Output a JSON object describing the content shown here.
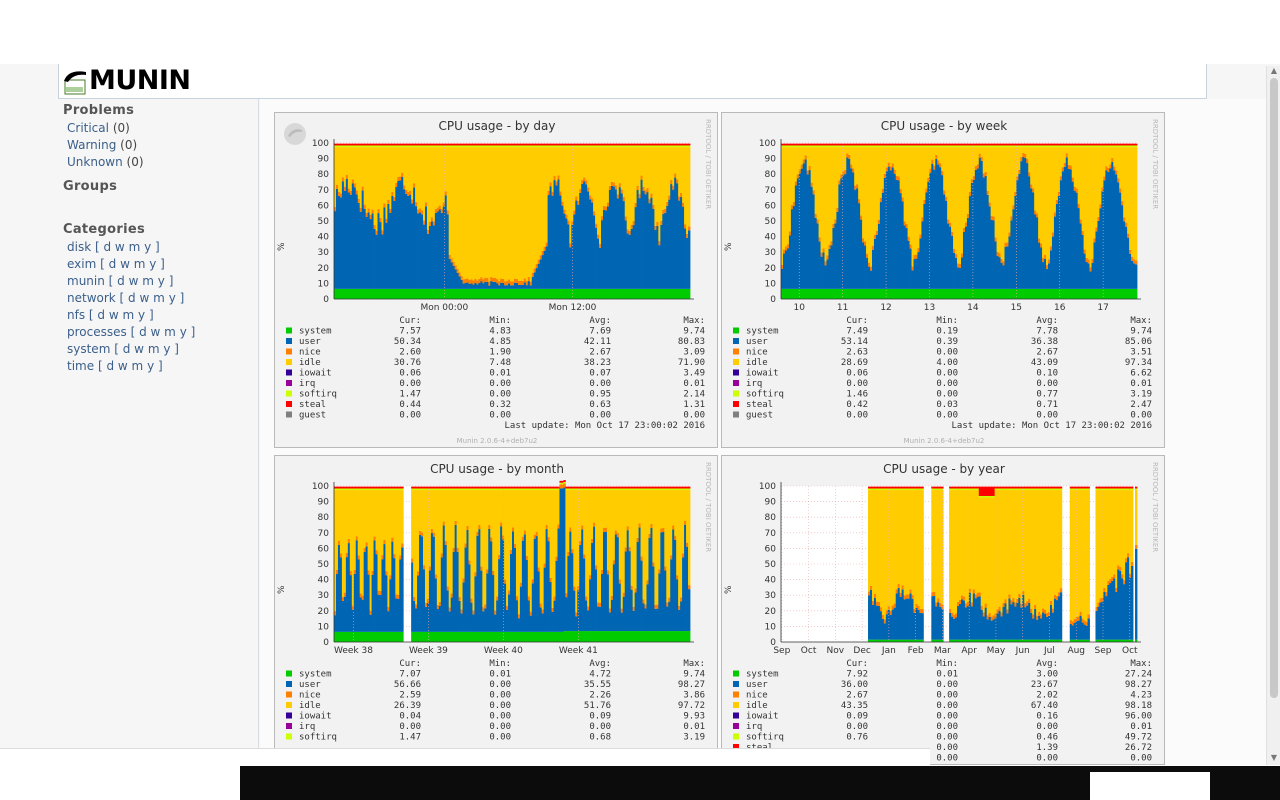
{
  "brand": {
    "logo_text": "MUNIN"
  },
  "sidebar": {
    "problems_heading": "Problems",
    "problems": [
      {
        "label": "Critical",
        "count": "(0)"
      },
      {
        "label": "Warning",
        "count": "(0)"
      },
      {
        "label": "Unknown",
        "count": "(0)"
      }
    ],
    "groups_heading": "Groups",
    "categories_heading": "Categories",
    "categories": [
      {
        "name": "disk"
      },
      {
        "name": "exim"
      },
      {
        "name": "munin"
      },
      {
        "name": "network"
      },
      {
        "name": "nfs"
      },
      {
        "name": "processes"
      },
      {
        "name": "system"
      },
      {
        "name": "time"
      }
    ],
    "period_links": [
      "d",
      "w",
      "m",
      "y"
    ]
  },
  "legend_header": {
    "cur": "Cur:",
    "min": "Min:",
    "avg": "Avg:",
    "max": "Max:"
  },
  "y_unit": "%",
  "vendor": "RRDTOOL / TOBI OETIKER",
  "series_colors": {
    "system": "#00cc00",
    "user": "#0066b3",
    "nice": "#ff8000",
    "idle": "#ffcc00",
    "iowait": "#330099",
    "irq": "#990099",
    "softirq": "#ccff00",
    "steal": "#ff0000",
    "guest": "#808080"
  },
  "chart_data": [
    {
      "type": "area",
      "title": "CPU usage - by day",
      "ylabel": "%",
      "ylim": [
        0,
        100
      ],
      "yticks": [
        0,
        10,
        20,
        30,
        40,
        50,
        60,
        70,
        80,
        90,
        100
      ],
      "xticks": [
        "Mon 00:00",
        "Mon 12:00"
      ],
      "grid": true,
      "legend": [
        {
          "name": "system",
          "cur": "7.57",
          "min": "4.83",
          "avg": "7.69",
          "max": "9.74"
        },
        {
          "name": "user",
          "cur": "50.34",
          "min": "4.85",
          "avg": "42.11",
          "max": "80.83"
        },
        {
          "name": "nice",
          "cur": "2.60",
          "min": "1.90",
          "avg": "2.67",
          "max": "3.09"
        },
        {
          "name": "idle",
          "cur": "30.76",
          "min": "7.48",
          "avg": "38.23",
          "max": "71.90"
        },
        {
          "name": "iowait",
          "cur": "0.06",
          "min": "0.01",
          "avg": "0.07",
          "max": "3.49"
        },
        {
          "name": "irq",
          "cur": "0.00",
          "min": "0.00",
          "avg": "0.00",
          "max": "0.01"
        },
        {
          "name": "softirq",
          "cur": "1.47",
          "min": "0.00",
          "avg": "0.95",
          "max": "2.14"
        },
        {
          "name": "steal",
          "cur": "0.44",
          "min": "0.32",
          "avg": "0.63",
          "max": "1.31"
        },
        {
          "name": "guest",
          "cur": "0.00",
          "min": "0.00",
          "avg": "0.00",
          "max": "0.00"
        }
      ],
      "last_update": "Last update:  Mon Oct 17 23:00:02 2016",
      "footer": "Munin 2.0.6-4+deb7u2"
    },
    {
      "type": "area",
      "title": "CPU usage - by week",
      "ylabel": "%",
      "ylim": [
        0,
        100
      ],
      "yticks": [
        0,
        10,
        20,
        30,
        40,
        50,
        60,
        70,
        80,
        90,
        100
      ],
      "xticks": [
        "10",
        "11",
        "12",
        "13",
        "14",
        "15",
        "16",
        "17"
      ],
      "grid": true,
      "legend": [
        {
          "name": "system",
          "cur": "7.49",
          "min": "0.19",
          "avg": "7.78",
          "max": "9.74"
        },
        {
          "name": "user",
          "cur": "53.14",
          "min": "0.39",
          "avg": "36.38",
          "max": "85.06"
        },
        {
          "name": "nice",
          "cur": "2.63",
          "min": "0.00",
          "avg": "2.67",
          "max": "3.51"
        },
        {
          "name": "idle",
          "cur": "28.69",
          "min": "4.00",
          "avg": "43.09",
          "max": "97.34"
        },
        {
          "name": "iowait",
          "cur": "0.06",
          "min": "0.00",
          "avg": "0.10",
          "max": "6.62"
        },
        {
          "name": "irq",
          "cur": "0.00",
          "min": "0.00",
          "avg": "0.00",
          "max": "0.01"
        },
        {
          "name": "softirq",
          "cur": "1.46",
          "min": "0.00",
          "avg": "0.77",
          "max": "3.19"
        },
        {
          "name": "steal",
          "cur": "0.42",
          "min": "0.03",
          "avg": "0.71",
          "max": "2.47"
        },
        {
          "name": "guest",
          "cur": "0.00",
          "min": "0.00",
          "avg": "0.00",
          "max": "0.00"
        }
      ],
      "last_update": "Last update:  Mon Oct 17 23:00:02 2016",
      "footer": "Munin 2.0.6-4+deb7u2"
    },
    {
      "type": "area",
      "title": "CPU usage - by month",
      "ylabel": "%",
      "ylim": [
        0,
        100
      ],
      "yticks": [
        0,
        10,
        20,
        30,
        40,
        50,
        60,
        70,
        80,
        90,
        100
      ],
      "xticks": [
        "Week 38",
        "Week 39",
        "Week 40",
        "Week 41"
      ],
      "grid": true,
      "legend": [
        {
          "name": "system",
          "cur": "7.07",
          "min": "0.01",
          "avg": "4.72",
          "max": "9.74"
        },
        {
          "name": "user",
          "cur": "56.66",
          "min": "0.00",
          "avg": "35.55",
          "max": "98.27"
        },
        {
          "name": "nice",
          "cur": "2.59",
          "min": "0.00",
          "avg": "2.26",
          "max": "3.86"
        },
        {
          "name": "idle",
          "cur": "26.39",
          "min": "0.00",
          "avg": "51.76",
          "max": "97.72"
        },
        {
          "name": "iowait",
          "cur": "0.04",
          "min": "0.00",
          "avg": "0.09",
          "max": "9.93"
        },
        {
          "name": "irq",
          "cur": "0.00",
          "min": "0.00",
          "avg": "0.00",
          "max": "0.01"
        },
        {
          "name": "softirq",
          "cur": "1.47",
          "min": "0.00",
          "avg": "0.68",
          "max": "3.19"
        }
      ],
      "last_update": "",
      "footer": ""
    },
    {
      "type": "area",
      "title": "CPU usage - by year",
      "ylabel": "%",
      "ylim": [
        0,
        100
      ],
      "yticks": [
        0,
        10,
        20,
        30,
        40,
        50,
        60,
        70,
        80,
        90,
        100
      ],
      "xticks": [
        "Sep",
        "Oct",
        "Nov",
        "Dec",
        "Jan",
        "Feb",
        "Mar",
        "Apr",
        "May",
        "Jun",
        "Jul",
        "Aug",
        "Sep",
        "Oct"
      ],
      "grid": true,
      "legend": [
        {
          "name": "system",
          "cur": "7.92",
          "min": "0.01",
          "avg": "3.00",
          "max": "27.24"
        },
        {
          "name": "user",
          "cur": "36.00",
          "min": "0.00",
          "avg": "23.67",
          "max": "98.27"
        },
        {
          "name": "nice",
          "cur": "2.67",
          "min": "0.00",
          "avg": "2.02",
          "max": "4.23"
        },
        {
          "name": "idle",
          "cur": "43.35",
          "min": "0.00",
          "avg": "67.40",
          "max": "98.18"
        },
        {
          "name": "iowait",
          "cur": "0.09",
          "min": "0.00",
          "avg": "0.16",
          "max": "96.00"
        },
        {
          "name": "irq",
          "cur": "0.00",
          "min": "0.00",
          "avg": "0.00",
          "max": "0.01"
        },
        {
          "name": "softirq",
          "cur": "0.76",
          "min": "0.00",
          "avg": "0.46",
          "max": "49.72"
        },
        {
          "name": "steal",
          "cur": "",
          "min": "0.00",
          "avg": "1.39",
          "max": "26.72"
        },
        {
          "name": "guest",
          "cur": "",
          "min": "0.00",
          "avg": "0.00",
          "max": "0.00"
        }
      ],
      "last_update": "",
      "footer": ""
    }
  ]
}
